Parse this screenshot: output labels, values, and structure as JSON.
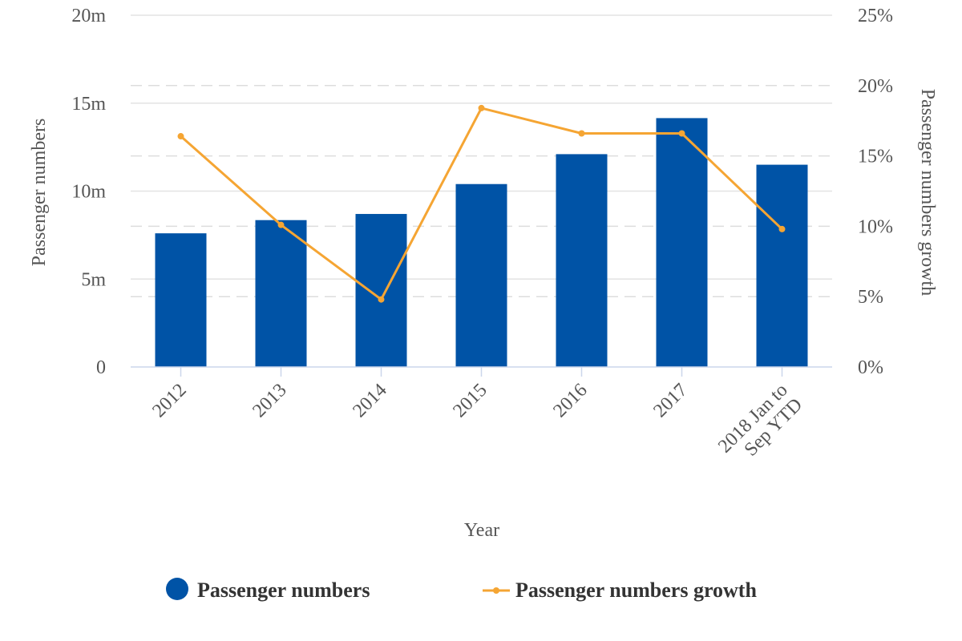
{
  "chart_data": {
    "type": "bar",
    "categories": [
      "2012",
      "2013",
      "2014",
      "2015",
      "2016",
      "2017",
      "2018 Jan to Sep YTD"
    ],
    "category_lines": [
      [
        "2012"
      ],
      [
        "2013"
      ],
      [
        "2014"
      ],
      [
        "2015"
      ],
      [
        "2016"
      ],
      [
        "2017"
      ],
      [
        "2018 Jan to",
        "Sep YTD"
      ]
    ],
    "series": [
      {
        "name": "Passenger numbers",
        "type": "bar",
        "axis": "left",
        "color": "#0053a6",
        "values": [
          7.6,
          8.35,
          8.7,
          10.4,
          12.1,
          14.15,
          11.5
        ]
      },
      {
        "name": "Passenger numbers growth",
        "type": "line",
        "axis": "right",
        "color": "#f5a533",
        "values": [
          16.4,
          10.1,
          4.8,
          18.4,
          16.6,
          16.6,
          9.8
        ]
      }
    ],
    "xlabel": "Year",
    "ylabel": "Passenger numbers",
    "y2label": "Passenger numbers growth",
    "ylim": [
      0,
      20
    ],
    "y2lim": [
      0,
      25
    ],
    "yticks": [
      0,
      5,
      10,
      15,
      20
    ],
    "ytick_labels": [
      "0",
      "5m",
      "10m",
      "15m",
      "20m"
    ],
    "y2ticks": [
      0,
      5,
      10,
      15,
      20,
      25
    ],
    "y2tick_labels": [
      "0%",
      "5%",
      "10%",
      "15%",
      "20%",
      "25%"
    ],
    "grid": true,
    "legend_position": "bottom"
  }
}
